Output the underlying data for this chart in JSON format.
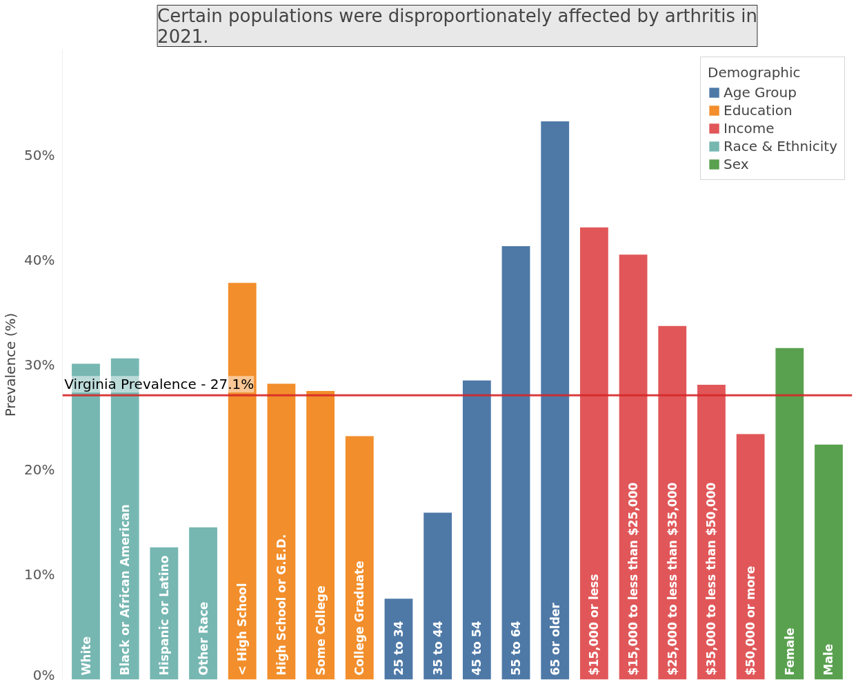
{
  "chart_data": {
    "type": "bar",
    "title": "Certain populations were disproportionately affected by arthritis in 2021.",
    "ylabel": "Prevalence (%)",
    "legend_title": "Demographic",
    "legend": "top right",
    "grid": false,
    "categories": [
      "White",
      "Black or African American",
      "Hispanic or Latino",
      "Other Race",
      "< High School",
      "High School or G.E.D.",
      "Some College",
      "College Graduate",
      "25 to 34",
      "35 to 44",
      "45 to 54",
      "55 to 64",
      "65 or older",
      "$15,000 or less",
      "$15,000 to less than $25,000",
      "$25,000 to less than $35,000",
      "$35,000 to less than $50,000",
      "$50,000 or more",
      "Female",
      "Male"
    ],
    "series": [
      {
        "name": "Age Group",
        "color": "#4e79a7",
        "values": [
          null,
          null,
          null,
          null,
          null,
          null,
          null,
          null,
          7.7,
          15.9,
          28.5,
          41.3,
          53.2,
          null,
          null,
          null,
          null,
          null,
          null,
          null
        ]
      },
      {
        "name": "Education",
        "color": "#f28e2b",
        "values": [
          null,
          null,
          null,
          null,
          37.8,
          28.2,
          27.5,
          23.2,
          null,
          null,
          null,
          null,
          null,
          null,
          null,
          null,
          null,
          null,
          null,
          null
        ]
      },
      {
        "name": "Income",
        "color": "#e15759",
        "values": [
          null,
          null,
          null,
          null,
          null,
          null,
          null,
          null,
          null,
          null,
          null,
          null,
          null,
          43.1,
          40.5,
          33.7,
          28.1,
          23.4,
          null,
          null
        ]
      },
      {
        "name": "Race & Ethnicity",
        "color": "#76b7b2",
        "values": [
          30.1,
          30.6,
          12.6,
          14.5,
          null,
          null,
          null,
          null,
          null,
          null,
          null,
          null,
          null,
          null,
          null,
          null,
          null,
          null,
          null,
          null
        ]
      },
      {
        "name": "Sex",
        "color": "#59a14f",
        "values": [
          null,
          null,
          null,
          null,
          null,
          null,
          null,
          null,
          null,
          null,
          null,
          null,
          null,
          null,
          null,
          null,
          null,
          null,
          31.6,
          22.4
        ]
      }
    ],
    "ylim": [
      0,
      60
    ],
    "yticks": [
      {
        "value": 0,
        "label": "0%"
      },
      {
        "value": 10,
        "label": "10%"
      },
      {
        "value": 20,
        "label": "20%"
      },
      {
        "value": 30,
        "label": "30%"
      },
      {
        "value": 40,
        "label": "40%"
      },
      {
        "value": 50,
        "label": "50%"
      }
    ],
    "ref_lines": [
      {
        "axis": "y",
        "value": 27.1,
        "label": "Virginia Prevalence - 27.1%",
        "color": "#d62728"
      }
    ]
  }
}
